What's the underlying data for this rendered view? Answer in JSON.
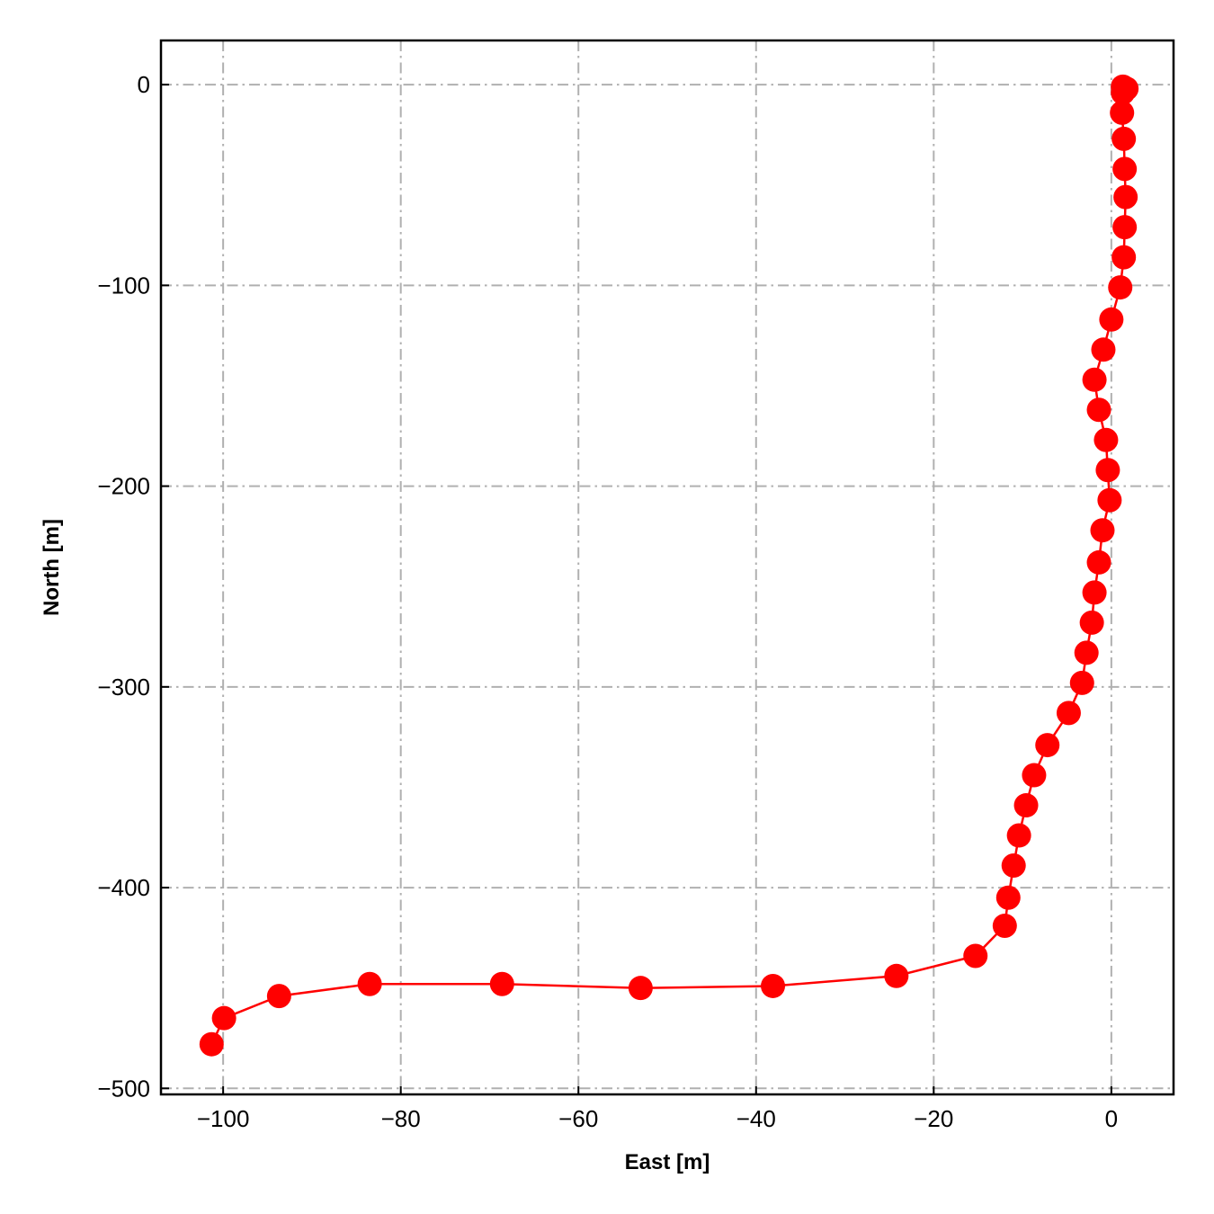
{
  "chart_data": {
    "type": "line",
    "title": "",
    "xlabel": "East [m]",
    "ylabel": "North [m]",
    "xlim": [
      -107,
      7
    ],
    "ylim": [
      -503,
      22
    ],
    "xticks": [
      -100,
      -80,
      -60,
      -40,
      -20,
      0
    ],
    "yticks": [
      0,
      -100,
      -200,
      -300,
      -400,
      -500
    ],
    "xtick_labels": [
      "−100",
      "−80",
      "−60",
      "−40",
      "−20",
      "0"
    ],
    "ytick_labels": [
      "0",
      "−100",
      "−200",
      "−300",
      "−400",
      "−500"
    ],
    "grid": true,
    "grid_style": "dash-dot",
    "legend": "none",
    "series_color": "#ff0000",
    "grid_color": "#b0b0b0",
    "marker": "circle",
    "series": [
      {
        "x": [
          1.7,
          1.3,
          1.3,
          1.2,
          1.4,
          1.5,
          1.6,
          1.5,
          1.4,
          1.0,
          0.0,
          -0.9,
          -1.9,
          -1.4,
          -0.6,
          -0.4,
          -0.2,
          -1.0,
          -1.4,
          -1.9,
          -2.2,
          -2.8,
          -3.3,
          -4.8,
          -7.2,
          -8.7,
          -9.6,
          -10.4,
          -11.0,
          -11.6,
          -12.0,
          -15.3,
          -24.2,
          -38.1,
          -53.0,
          -68.6,
          -83.5,
          -93.7,
          -99.9,
          -101.3
        ],
        "y": [
          -2,
          -1,
          -4,
          -14,
          -27,
          -42,
          -56,
          -71,
          -86,
          -101,
          -117,
          -132,
          -147,
          -162,
          -177,
          -192,
          -207,
          -222,
          -238,
          -253,
          -268,
          -283,
          -298,
          -313,
          -329,
          -344,
          -359,
          -374,
          -389,
          -405,
          -419,
          -434,
          -444,
          -449,
          -450,
          -448,
          -448,
          -454,
          -465,
          -478
        ]
      }
    ]
  }
}
